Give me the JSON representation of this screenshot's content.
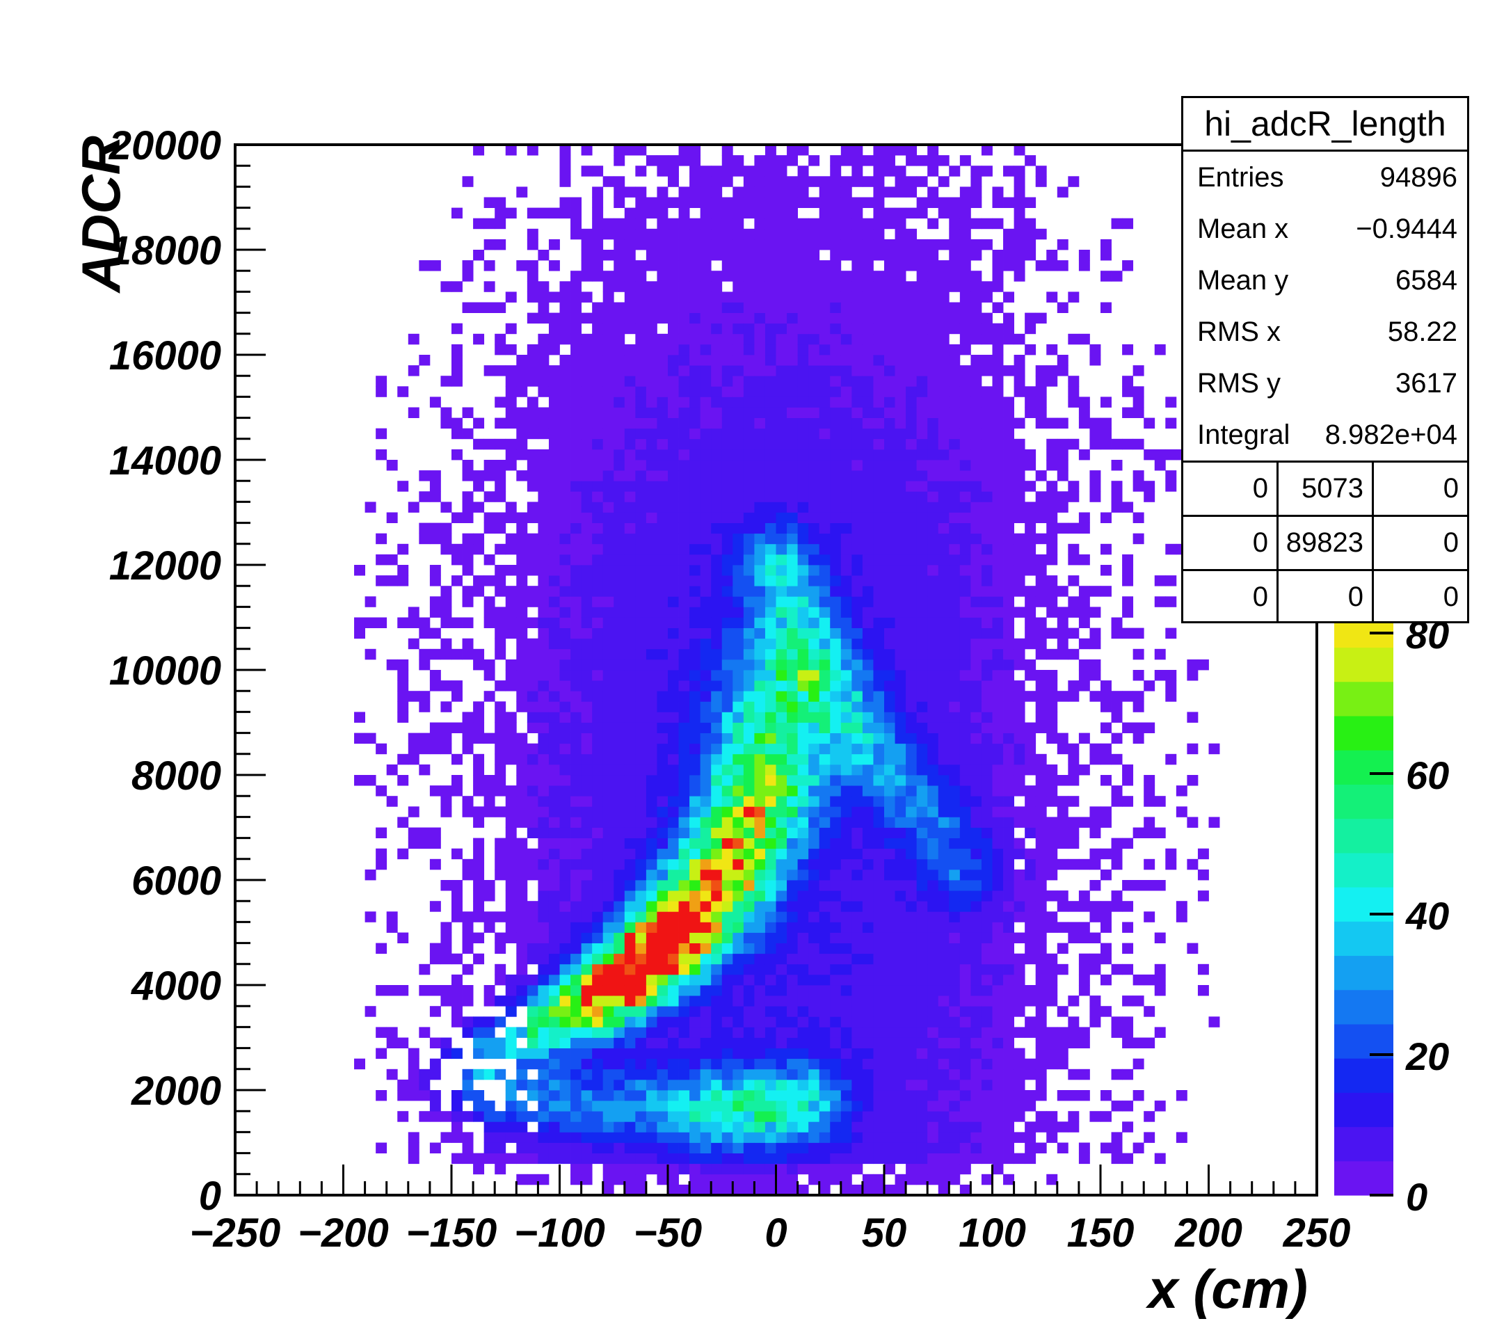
{
  "chart_data": {
    "type": "heatmap",
    "title": "",
    "xlabel": "x (cm)",
    "ylabel": "ADCR",
    "xlim": [
      -250,
      250
    ],
    "ylim": [
      0,
      20000
    ],
    "x_ticks": [
      "-250",
      "-200",
      "-150",
      "-100",
      "-50",
      "0",
      "50",
      "100",
      "150",
      "200",
      "250"
    ],
    "y_ticks": [
      "0",
      "2000",
      "4000",
      "6000",
      "8000",
      "10000",
      "12000",
      "14000",
      "16000",
      "18000",
      "20000"
    ],
    "colorbar": {
      "range": [
        0,
        100
      ],
      "ticks": [
        "0",
        "20",
        "40",
        "60",
        "80"
      ],
      "colors": [
        "#6a14f2",
        "#4b14f2",
        "#2c14f2",
        "#1428f2",
        "#1450f2",
        "#1478f2",
        "#14a0f2",
        "#14c8f2",
        "#14f0f2",
        "#14f0c8",
        "#14f0a0",
        "#14f078",
        "#14f050",
        "#28f014",
        "#78f014",
        "#c8f014",
        "#f0e614",
        "#f0a014",
        "#f05014",
        "#f01414"
      ]
    },
    "bins": {
      "nx": 100,
      "ny": 100
    },
    "peak": {
      "x": -60,
      "y": 3800,
      "max_content": 100
    },
    "features": [
      {
        "name": "main band",
        "from": [
          -150,
          2200
        ],
        "through": [
          -60,
          3800
        ],
        "to": [
          0,
          9500
        ]
      },
      {
        "name": "secondary arm",
        "from": [
          0,
          12000
        ],
        "to": [
          75,
          7000
        ]
      },
      {
        "name": "low cluster",
        "center": [
          -10,
          1700
        ]
      }
    ]
  },
  "stats": {
    "title": "hi_adcR_length",
    "rows": [
      {
        "label": "Entries",
        "value": "94896"
      },
      {
        "label": "Mean x",
        "value": "-0.9444"
      },
      {
        "label": "Mean y",
        "value": "6584"
      },
      {
        "label": "RMS x",
        "value": "58.22"
      },
      {
        "label": "RMS y",
        "value": "3617"
      },
      {
        "label": "Integral",
        "value": "8.982e+04"
      }
    ],
    "grid": [
      [
        "0",
        "5073",
        "0"
      ],
      [
        "0",
        "89823",
        "0"
      ],
      [
        "0",
        "0",
        "0"
      ]
    ]
  }
}
